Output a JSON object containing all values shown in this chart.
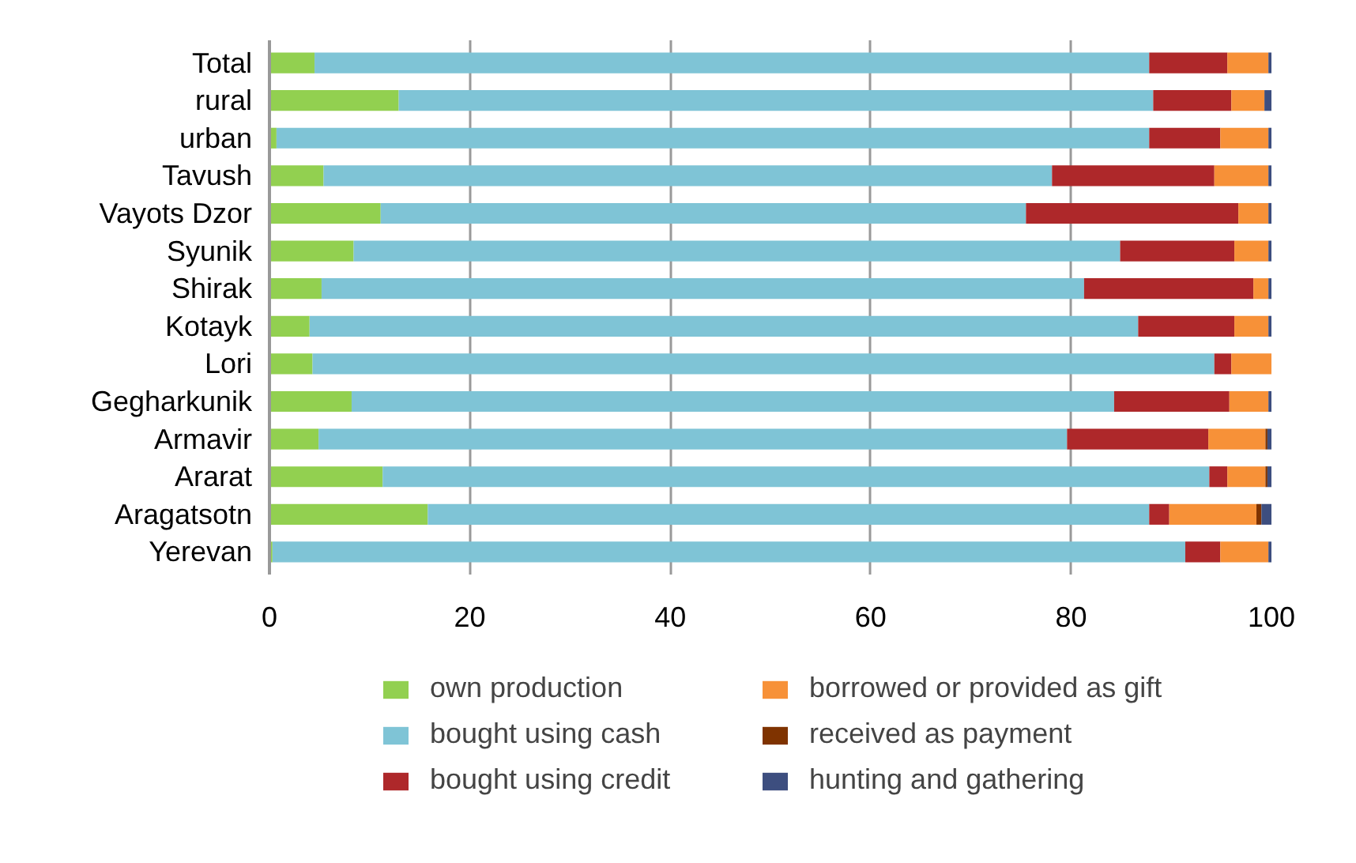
{
  "chart_data": {
    "type": "bar",
    "orientation": "horizontal",
    "stacked": true,
    "categories": [
      "Total",
      "rural",
      "urban",
      "Tavush",
      "Vayots Dzor",
      "Syunik",
      "Shirak",
      "Kotayk",
      "Lori",
      "Gegharkunik",
      "Armavir",
      "Ararat",
      "Aragatsotn",
      "Yerevan"
    ],
    "series": [
      {
        "name": "own production",
        "color": "#92d050",
        "values": [
          4.5,
          12.9,
          0.7,
          5.4,
          11.1,
          8.4,
          5.2,
          4.0,
          4.3,
          8.2,
          4.9,
          11.3,
          15.8,
          0.3
        ]
      },
      {
        "name": "bought using cash",
        "color": "#7fc4d6",
        "values": [
          83.3,
          75.3,
          87.1,
          72.7,
          64.4,
          76.5,
          76.1,
          82.7,
          90.0,
          76.1,
          74.7,
          82.5,
          72.0,
          91.1
        ]
      },
      {
        "name": "bought using credit",
        "color": "#ae282a",
        "values": [
          7.8,
          7.8,
          7.1,
          16.2,
          21.2,
          11.4,
          16.9,
          9.6,
          1.7,
          11.5,
          14.1,
          1.8,
          2.0,
          3.5
        ]
      },
      {
        "name": "borrowed or provided as gift",
        "color": "#f79138",
        "values": [
          4.1,
          3.3,
          4.8,
          5.4,
          3.0,
          3.4,
          1.5,
          3.4,
          4.0,
          3.9,
          5.7,
          3.8,
          8.7,
          4.8
        ]
      },
      {
        "name": "received as payment",
        "color": "#7f3300",
        "values": [
          0,
          0,
          0,
          0,
          0,
          0,
          0,
          0,
          0,
          0,
          0.2,
          0.2,
          0.5,
          0
        ]
      },
      {
        "name": "hunting and gathering",
        "color": "#3d4e7f",
        "values": [
          0.3,
          0.7,
          0.3,
          0.3,
          0.3,
          0.3,
          0.3,
          0.3,
          0,
          0.3,
          0.4,
          0.4,
          1.0,
          0.3
        ]
      }
    ],
    "xlim": [
      0,
      100
    ],
    "xticks": [
      0,
      20,
      40,
      60,
      80,
      100
    ],
    "grid": "x",
    "legend": "bottom"
  }
}
